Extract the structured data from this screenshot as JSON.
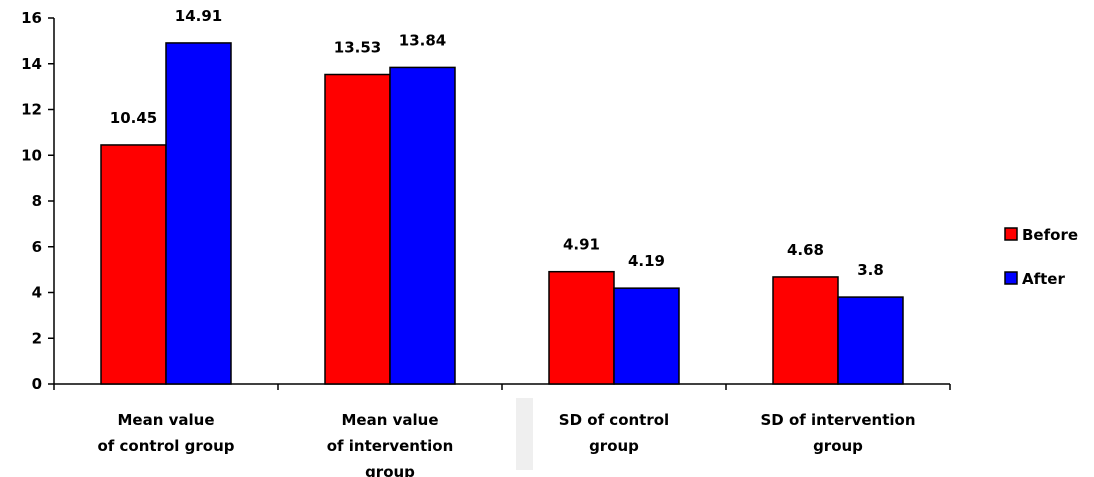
{
  "chart_data": {
    "type": "bar",
    "categories": [
      [
        "Mean value",
        "of control group"
      ],
      [
        "Mean value",
        "of intervention",
        "group"
      ],
      [
        "SD of control",
        "group"
      ],
      [
        "SD of intervention",
        "group"
      ]
    ],
    "series": [
      {
        "name": "Before",
        "color": "#ff0000",
        "values": [
          10.45,
          13.53,
          4.91,
          4.68
        ],
        "labels": [
          "10.45",
          "13.53",
          "4.91",
          "4.68"
        ]
      },
      {
        "name": "After",
        "color": "#0000ff",
        "values": [
          14.91,
          13.84,
          4.19,
          3.8
        ],
        "labels": [
          "14.91",
          "13.84",
          "4.19",
          "3.8"
        ]
      }
    ],
    "ylim": [
      0,
      16
    ],
    "yticks": [
      "0",
      "2",
      "4",
      "6",
      "8",
      "10",
      "12",
      "14",
      "16"
    ],
    "title": "",
    "xlabel": "",
    "ylabel": "",
    "grid": false,
    "legend": "right"
  }
}
